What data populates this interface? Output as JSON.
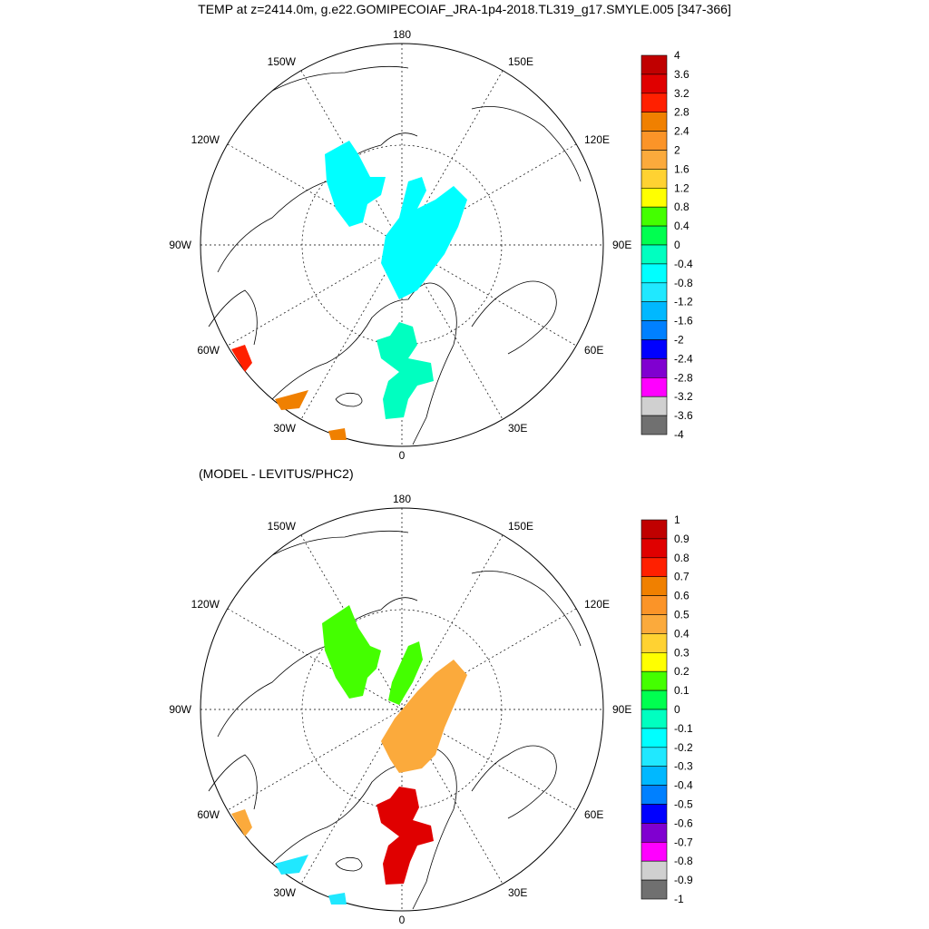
{
  "title": "TEMP at z=2414.0m, g.e22.GOMIPECOIAF_JRA-1p4-2018.TL319_g17.SMYLE.005 [347-366]",
  "subtitle": "(MODEL - LEVITUS/PHC2)",
  "lon_labels": {
    "top": "180",
    "bottom": "0",
    "left": "90W",
    "right": "90E",
    "upper_left": "150W",
    "upper_right": "150E",
    "left_upper": "120W",
    "right_upper": "120E",
    "left_lower": "60W",
    "right_lower": "60E",
    "lower_left": "30W",
    "lower_right": "30E"
  },
  "colorbar_top": {
    "labels": [
      "4",
      "3.6",
      "3.2",
      "2.8",
      "2.4",
      "2",
      "1.6",
      "1.2",
      "0.8",
      "0.4",
      "0",
      "-0.4",
      "-0.8",
      "-1.2",
      "-1.6",
      "-2",
      "-2.4",
      "-2.8",
      "-3.2",
      "-3.6",
      "-4"
    ],
    "colors": [
      "#c00000",
      "#e00000",
      "#ff2000",
      "#f08000",
      "#fb9428",
      "#fbaa3c",
      "#ffd232",
      "#ffff00",
      "#44ff00",
      "#00ff50",
      "#00ffc0",
      "#00ffff",
      "#20e8ff",
      "#00b8ff",
      "#0080ff",
      "#0000ff",
      "#8000d0",
      "#ff00ff",
      "#d0d0d0",
      "#707070"
    ]
  },
  "colorbar_bottom": {
    "labels": [
      "1",
      "0.9",
      "0.8",
      "0.7",
      "0.6",
      "0.5",
      "0.4",
      "0.3",
      "0.2",
      "0.1",
      "0",
      "-0.1",
      "-0.2",
      "-0.3",
      "-0.4",
      "-0.5",
      "-0.6",
      "-0.7",
      "-0.8",
      "-0.9",
      "-1"
    ],
    "colors": [
      "#c00000",
      "#e00000",
      "#ff2000",
      "#f08000",
      "#fb9428",
      "#fbaa3c",
      "#ffd232",
      "#ffff00",
      "#44ff00",
      "#00ff50",
      "#00ffc0",
      "#00ffff",
      "#20e8ff",
      "#00b8ff",
      "#0080ff",
      "#0000ff",
      "#8000d0",
      "#ff00ff",
      "#d0d0d0",
      "#707070"
    ]
  },
  "fields_top": {
    "region_1_color": "#00ffff",
    "region_2_color": "#00ffc0",
    "region_3_color": "#ff2000",
    "region_4_color": "#f08000"
  },
  "fields_bottom": {
    "region_1_color": "#44ff00",
    "region_2_color": "#fbaa3c",
    "region_3_color": "#e00000",
    "region_4_color": "#20e8ff"
  }
}
